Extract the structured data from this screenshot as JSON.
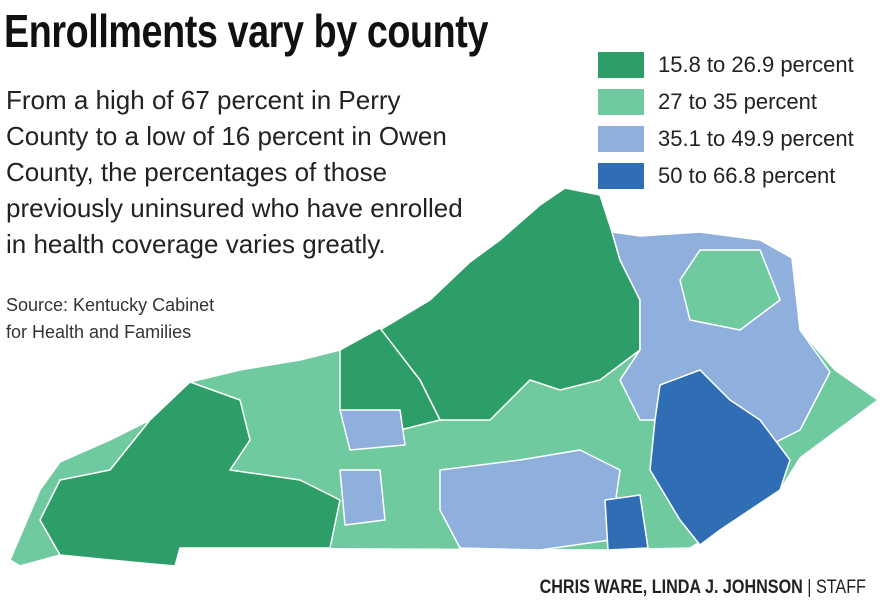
{
  "header": {
    "title": "Enrollments vary by county"
  },
  "description": [
    "From a high of 67 percent in Perry",
    "County to a low of 16 percent in Owen",
    "County, the percentages of those",
    "previously uninsured who have enrolled",
    "in health coverage varies greatly."
  ],
  "source": [
    "Source: Kentucky Cabinet",
    "for Health and Families"
  ],
  "legend": [
    {
      "label": "15.8 to 26.9 percent",
      "color": "#2e9e68"
    },
    {
      "label": "27 to 35 percent",
      "color": "#6fcb9f"
    },
    {
      "label": "35.1 to 49.9 percent",
      "color": "#8fb0dc"
    },
    {
      "label": "50 to 66.8 percent",
      "color": "#2f6db5"
    }
  ],
  "credit": {
    "names": "CHRIS WARE, LINDA J. JOHNSON",
    "separator": "|",
    "role": "STAFF"
  }
}
